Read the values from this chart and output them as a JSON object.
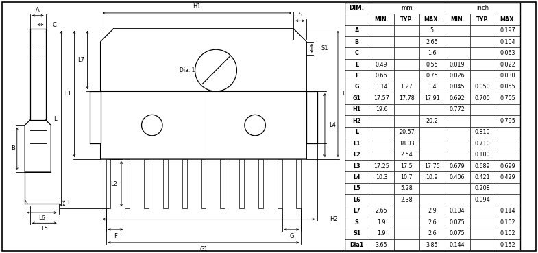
{
  "table_rows": [
    [
      "A",
      "",
      "",
      "5",
      "",
      "",
      "0.197"
    ],
    [
      "B",
      "",
      "",
      "2.65",
      "",
      "",
      "0.104"
    ],
    [
      "C",
      "",
      "",
      "1.6",
      "",
      "",
      "0.063"
    ],
    [
      "E",
      "0.49",
      "",
      "0.55",
      "0.019",
      "",
      "0.022"
    ],
    [
      "F",
      "0.66",
      "",
      "0.75",
      "0.026",
      "",
      "0.030"
    ],
    [
      "G",
      "1.14",
      "1.27",
      "1.4",
      "0.045",
      "0.050",
      "0.055"
    ],
    [
      "G1",
      "17.57",
      "17.78",
      "17.91",
      "0.692",
      "0.700",
      "0.705"
    ],
    [
      "H1",
      "19.6",
      "",
      "",
      "0.772",
      "",
      ""
    ],
    [
      "H2",
      "",
      "",
      "20.2",
      "",
      "",
      "0.795"
    ],
    [
      "L",
      "",
      "20.57",
      "",
      "",
      "0.810",
      ""
    ],
    [
      "L1",
      "",
      "18.03",
      "",
      "",
      "0.710",
      ""
    ],
    [
      "L2",
      "",
      "2.54",
      "",
      "",
      "0.100",
      ""
    ],
    [
      "L3",
      "17.25",
      "17.5",
      "17.75",
      "0.679",
      "0.689",
      "0.699"
    ],
    [
      "L4",
      "10.3",
      "10.7",
      "10.9",
      "0.406",
      "0.421",
      "0.429"
    ],
    [
      "L5",
      "",
      "5.28",
      "",
      "",
      "0.208",
      ""
    ],
    [
      "L6",
      "",
      "2.38",
      "",
      "",
      "0.094",
      ""
    ],
    [
      "L7",
      "2.65",
      "",
      "2.9",
      "0.104",
      "",
      "0.114"
    ],
    [
      "S",
      "1.9",
      "",
      "2.6",
      "0.075",
      "",
      "0.102"
    ],
    [
      "S1",
      "1.9",
      "",
      "2.6",
      "0.075",
      "",
      "0.102"
    ],
    [
      "Dia1",
      "3.65",
      "",
      "3.85",
      "0.144",
      "",
      "0.152"
    ]
  ],
  "bg_color": "#ffffff",
  "line_color": "#000000"
}
